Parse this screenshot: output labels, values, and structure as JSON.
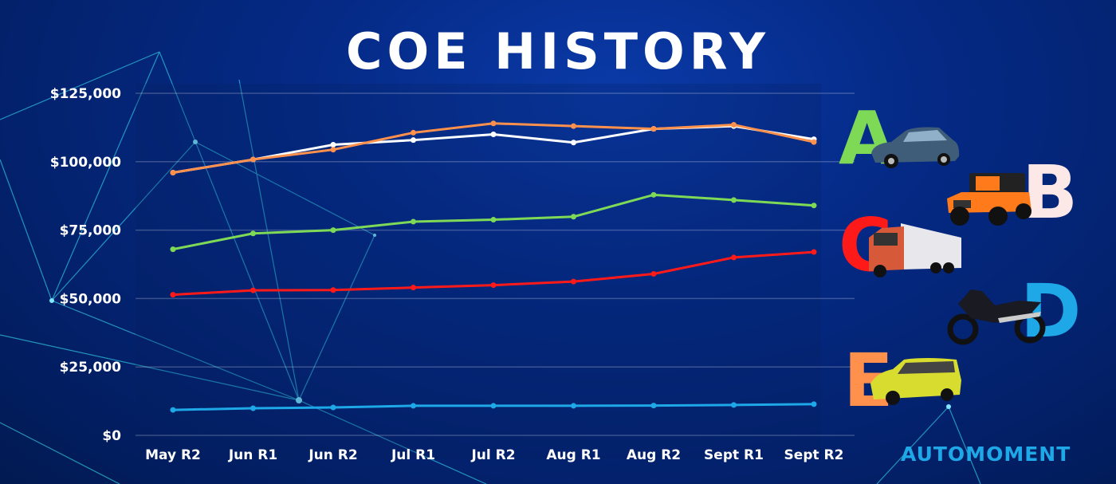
{
  "chart_data": {
    "type": "line",
    "title": "COE HISTORY",
    "categories": [
      "May R2",
      "Jun R1",
      "Jun R2",
      "Jul R1",
      "Jul R2",
      "Aug R1",
      "Aug R2",
      "Sept R1",
      "Sept R2"
    ],
    "ylim": [
      0,
      125000
    ],
    "yticks": [
      0,
      25000,
      50000,
      75000,
      100000,
      125000
    ],
    "ytick_labels": [
      "$0",
      "$25,000",
      "$50,000",
      "$75,000",
      "$100,000",
      "$125,000"
    ],
    "grid": true,
    "legend": "right",
    "series": [
      {
        "name": "A",
        "color": "#7ed957",
        "values": [
          68000,
          73800,
          75000,
          78100,
          78800,
          79900,
          87900,
          86000,
          84000
        ]
      },
      {
        "name": "B",
        "color": "#ffffff",
        "values": [
          96000,
          100800,
          106200,
          107900,
          110000,
          107000,
          112000,
          113000,
          108200
        ]
      },
      {
        "name": "C",
        "color": "#ff1a1a",
        "values": [
          51400,
          53000,
          53100,
          54000,
          54900,
          56200,
          59000,
          65000,
          67000
        ]
      },
      {
        "name": "D",
        "color": "#1ea8e8",
        "values": [
          9300,
          9900,
          10200,
          10800,
          10800,
          10800,
          10900,
          11100,
          11400
        ]
      },
      {
        "name": "E",
        "color": "#ff914d",
        "values": [
          96000,
          100800,
          104400,
          110600,
          114000,
          113000,
          112000,
          113500,
          107200
        ]
      }
    ]
  },
  "legend_items": [
    {
      "letter": "A",
      "color": "#7ed957",
      "vehicle": "sedan"
    },
    {
      "letter": "B",
      "color": "#fde8e8",
      "vehicle": "jeep"
    },
    {
      "letter": "C",
      "color": "#ff1a1a",
      "vehicle": "truck"
    },
    {
      "letter": "D",
      "color": "#1ea8e8",
      "vehicle": "motorcycle"
    },
    {
      "letter": "E",
      "color": "#ff914d",
      "vehicle": "mpv"
    }
  ],
  "logo": "AUTOMOMENT"
}
